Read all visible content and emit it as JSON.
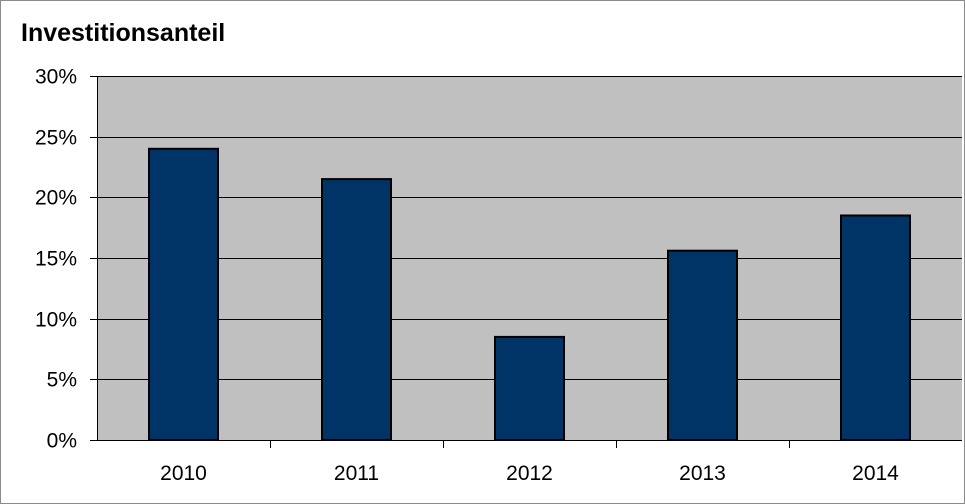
{
  "chart_data": {
    "type": "bar",
    "title": "Investitionsanteil",
    "xlabel": "",
    "ylabel": "",
    "categories": [
      "2010",
      "2011",
      "2012",
      "2013",
      "2014"
    ],
    "values": [
      24,
      21.5,
      8.5,
      15.6,
      18.5
    ],
    "ylim": [
      0,
      30
    ],
    "yticks": [
      0,
      5,
      10,
      15,
      20,
      25,
      30
    ],
    "ytick_labels": [
      "0%",
      "5%",
      "10%",
      "15%",
      "20%",
      "25%",
      "30%"
    ],
    "grid": true,
    "legend": "none",
    "colors": {
      "bar_fill": "#003366",
      "bar_stroke": "#000000",
      "plot_background": "#c0c0c0",
      "gridline": "#000000"
    }
  }
}
